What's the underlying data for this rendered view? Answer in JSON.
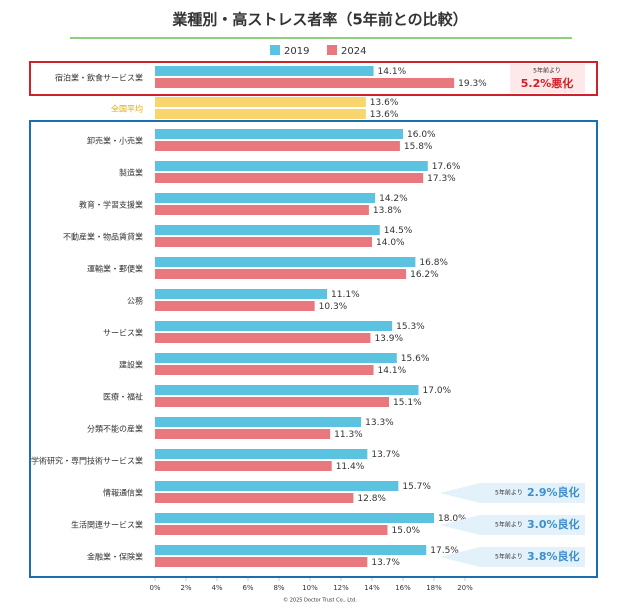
{
  "chart_data": {
    "type": "bar",
    "orientation": "horizontal",
    "title": "業種別・高ストレス者率（5年前との比較）",
    "categories": [
      "宿泊業・飲食サービス業",
      "全国平均",
      "卸売業・小売業",
      "製造業",
      "教育・学習支援業",
      "不動産業・物品賃貸業",
      "運輸業・郵便業",
      "公務",
      "サービス業",
      "建設業",
      "医療・福祉",
      "分類不能の産業",
      "学術研究・専門技術サービス業",
      "情報通信業",
      "生活関連サービス業",
      "金融業・保険業"
    ],
    "series": [
      {
        "name": "2019",
        "color": "#5bc3e0",
        "values": [
          14.1,
          13.6,
          16.0,
          17.6,
          14.2,
          14.5,
          16.8,
          11.1,
          15.3,
          15.6,
          17.0,
          13.3,
          13.7,
          15.7,
          18.0,
          17.5
        ],
        "value_labels": [
          "14.1%",
          "13.6%",
          "16.0%",
          "17.6%",
          "14.2%",
          "14.5%",
          "16.8%",
          "11.1%",
          "15.3%",
          "15.6%",
          "17.0%",
          "13.3%",
          "13.7%",
          "15.7%",
          "18.0%",
          "17.5%"
        ]
      },
      {
        "name": "2024",
        "color": "#e8787e",
        "values": [
          19.3,
          13.6,
          15.8,
          17.3,
          13.8,
          14.0,
          16.2,
          10.3,
          13.9,
          14.1,
          15.1,
          11.3,
          11.4,
          12.8,
          15.0,
          13.7
        ],
        "value_labels": [
          "19.3%",
          "13.6%",
          "15.8%",
          "17.3%",
          "13.8%",
          "14.0%",
          "16.2%",
          "10.3%",
          "13.9%",
          "14.1%",
          "15.1%",
          "11.3%",
          "11.4%",
          "12.8%",
          "15.0%",
          "13.7%"
        ]
      }
    ],
    "highlight_color": "#f9d56e",
    "xlim": [
      0,
      20
    ],
    "xticks": [
      {
        "value": 0,
        "label": "0%"
      },
      {
        "value": 2,
        "label": "2%"
      },
      {
        "value": 4,
        "label": "4%"
      },
      {
        "value": 6,
        "label": "6%"
      },
      {
        "value": 8,
        "label": "8%"
      },
      {
        "value": 10,
        "label": "10%"
      },
      {
        "value": 12,
        "label": "12%"
      },
      {
        "value": 14,
        "label": "14%"
      },
      {
        "value": 16,
        "label": "16%"
      },
      {
        "value": 18,
        "label": "18%"
      },
      {
        "value": 20,
        "label": "20%"
      }
    ],
    "legend": "top",
    "annotations": [
      {
        "lead": "5年前より",
        "text": "5.2%悪化"
      },
      {
        "lead": "5年前より",
        "text": "2.9%良化"
      },
      {
        "lead": "5年前より",
        "text": "3.0%良化"
      },
      {
        "lead": "5年前より",
        "text": "3.8%良化"
      }
    ],
    "footer": "© 2025 Doctor Trust Co., Ltd."
  }
}
